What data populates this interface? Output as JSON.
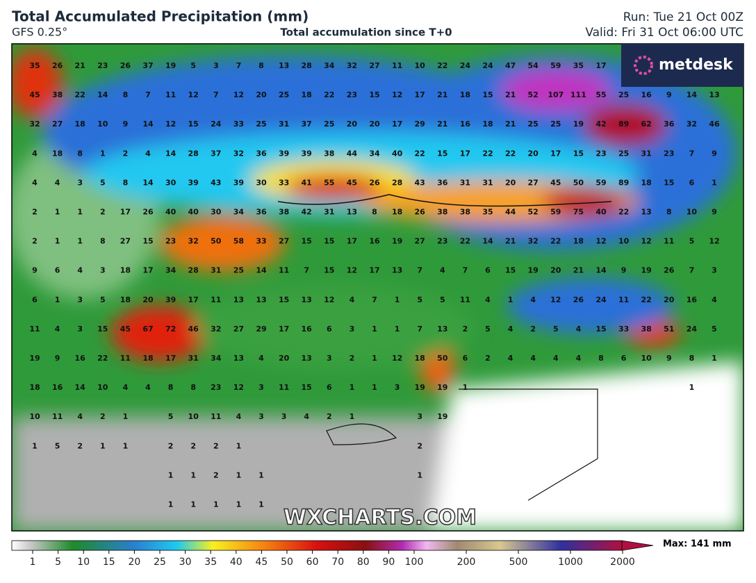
{
  "header": {
    "title": "Total Accumulated Precipitation (mm)",
    "model": "GFS 0.25°",
    "subtitle": "Total accumulation since T+0",
    "run": "Run: Tue 21 Oct 00Z",
    "valid": "Valid: Fri 31 Oct 06:00 UTC"
  },
  "logo": "metdesk",
  "watermark": "WXCHARTS.COM",
  "map": {
    "grid_rows": [
      [
        35,
        26,
        21,
        23,
        26,
        37,
        19,
        5,
        3,
        7,
        8,
        13,
        28,
        34,
        32,
        27,
        11,
        10,
        22,
        24,
        24,
        47,
        54,
        59,
        35,
        17,
        null,
        null,
        null,
        null,
        null
      ],
      [
        45,
        38,
        22,
        14,
        8,
        7,
        11,
        12,
        7,
        12,
        20,
        25,
        18,
        22,
        23,
        15,
        12,
        17,
        21,
        18,
        15,
        21,
        52,
        107,
        111,
        55,
        25,
        16,
        9,
        14,
        13
      ],
      [
        32,
        27,
        18,
        10,
        9,
        14,
        12,
        15,
        24,
        33,
        25,
        31,
        37,
        25,
        20,
        20,
        17,
        29,
        21,
        16,
        18,
        21,
        25,
        25,
        19,
        42,
        89,
        62,
        36,
        32,
        46
      ],
      [
        4,
        18,
        8,
        1,
        2,
        4,
        14,
        28,
        37,
        32,
        36,
        39,
        39,
        38,
        44,
        34,
        40,
        22,
        15,
        17,
        22,
        22,
        20,
        17,
        15,
        23,
        25,
        31,
        23,
        7,
        9
      ],
      [
        4,
        4,
        3,
        5,
        8,
        14,
        30,
        39,
        43,
        39,
        30,
        33,
        41,
        55,
        45,
        26,
        28,
        43,
        36,
        31,
        31,
        20,
        27,
        45,
        50,
        59,
        89,
        18,
        15,
        6,
        1
      ],
      [
        2,
        1,
        1,
        2,
        17,
        26,
        40,
        40,
        30,
        34,
        36,
        38,
        42,
        31,
        13,
        8,
        18,
        26,
        38,
        38,
        35,
        44,
        52,
        59,
        75,
        40,
        22,
        13,
        8,
        10,
        9
      ],
      [
        2,
        1,
        1,
        8,
        27,
        15,
        23,
        32,
        50,
        58,
        33,
        27,
        15,
        15,
        17,
        16,
        19,
        27,
        23,
        22,
        14,
        21,
        32,
        22,
        18,
        12,
        10,
        12,
        11,
        5,
        12
      ],
      [
        9,
        6,
        4,
        3,
        18,
        17,
        34,
        28,
        31,
        25,
        14,
        11,
        7,
        15,
        12,
        17,
        13,
        7,
        4,
        7,
        6,
        15,
        19,
        20,
        21,
        14,
        9,
        19,
        26,
        7,
        3
      ],
      [
        6,
        1,
        3,
        5,
        18,
        20,
        39,
        17,
        11,
        13,
        13,
        15,
        13,
        12,
        4,
        7,
        1,
        5,
        5,
        11,
        4,
        1,
        4,
        12,
        26,
        24,
        11,
        22,
        20,
        16,
        4
      ],
      [
        11,
        4,
        3,
        15,
        45,
        67,
        72,
        46,
        32,
        27,
        29,
        17,
        16,
        6,
        3,
        1,
        1,
        7,
        13,
        2,
        5,
        4,
        2,
        5,
        4,
        15,
        33,
        38,
        51,
        24,
        5
      ],
      [
        19,
        9,
        16,
        22,
        11,
        18,
        17,
        31,
        34,
        13,
        4,
        20,
        13,
        3,
        2,
        1,
        12,
        18,
        50,
        6,
        2,
        4,
        4,
        4,
        4,
        8,
        6,
        10,
        9,
        8,
        1
      ],
      [
        18,
        16,
        14,
        10,
        4,
        4,
        8,
        8,
        23,
        12,
        3,
        11,
        15,
        6,
        1,
        1,
        3,
        19,
        19,
        1,
        null,
        null,
        null,
        null,
        null,
        null,
        null,
        null,
        null,
        1,
        null
      ],
      [
        10,
        11,
        4,
        2,
        1,
        null,
        5,
        10,
        11,
        4,
        3,
        3,
        4,
        2,
        1,
        null,
        null,
        3,
        19,
        null,
        null,
        null,
        null,
        null,
        null,
        null,
        null,
        null,
        null,
        null,
        null
      ],
      [
        1,
        5,
        2,
        1,
        1,
        null,
        2,
        2,
        2,
        1,
        null,
        null,
        null,
        null,
        null,
        null,
        null,
        2,
        null,
        null,
        null,
        null,
        null,
        null,
        null,
        null,
        null,
        null,
        null,
        null,
        null
      ],
      [
        null,
        null,
        null,
        null,
        null,
        null,
        1,
        1,
        2,
        1,
        1,
        null,
        null,
        null,
        null,
        null,
        null,
        1,
        null,
        null,
        null,
        null,
        null,
        null,
        null,
        null,
        null,
        null,
        null,
        null,
        null
      ],
      [
        null,
        null,
        null,
        null,
        null,
        null,
        1,
        1,
        1,
        1,
        1,
        null,
        null,
        null,
        null,
        null,
        null,
        null,
        null,
        null,
        null,
        null,
        null,
        null,
        null,
        null,
        null,
        null,
        null,
        null,
        null
      ]
    ]
  },
  "legend": {
    "ticks": [
      1,
      5,
      10,
      15,
      20,
      25,
      30,
      35,
      40,
      45,
      50,
      60,
      70,
      80,
      90,
      100,
      200,
      500,
      1000,
      2000
    ],
    "max": "Max: 141 mm"
  }
}
